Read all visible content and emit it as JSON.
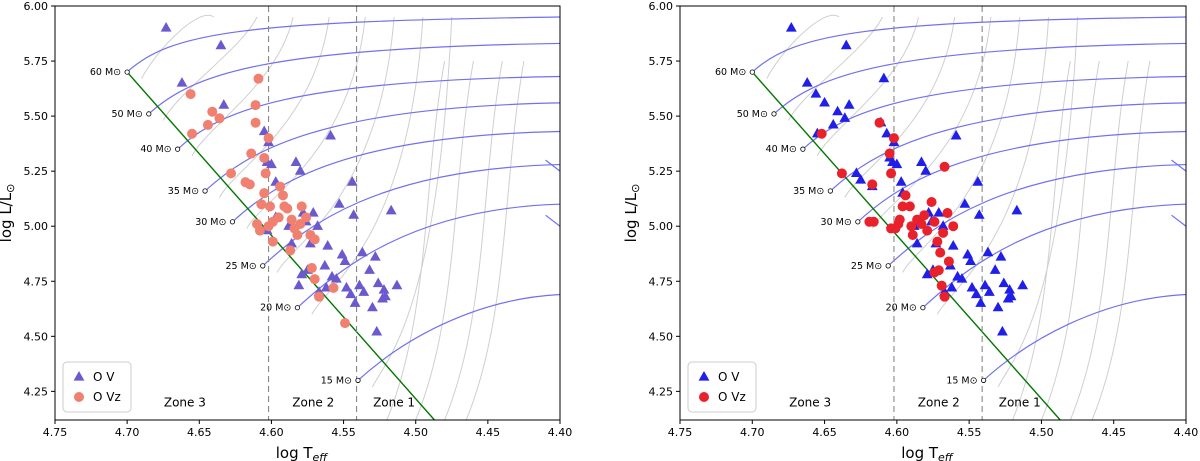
{
  "chart_data": [
    {
      "type": "scatter",
      "panel": "left",
      "xlabel": "log T",
      "xlabel_sub": "eff",
      "ylabel": "log L/L",
      "ylabel_sym": "⊙",
      "xlim": [
        4.75,
        4.4
      ],
      "ylim": [
        4.12,
        6.0
      ],
      "xticks": [
        "4.75",
        "4.70",
        "4.65",
        "4.60",
        "4.55",
        "4.50",
        "4.45",
        "4.40"
      ],
      "yticks": [
        "4.25",
        "4.50",
        "4.75",
        "5.00",
        "5.25",
        "5.50",
        "5.75",
        "6.00"
      ],
      "zone_lines": [
        4.602,
        4.541
      ],
      "zones": [
        {
          "label": "Zone 3",
          "x": 4.66,
          "y": 4.2
        },
        {
          "label": "Zone 2",
          "x": 4.571,
          "y": 4.2
        },
        {
          "label": "Zone 1",
          "x": 4.515,
          "y": 4.2
        }
      ],
      "series": [
        {
          "name": "O V",
          "marker": "triangle",
          "color": "#6a5acd",
          "points": [
            [
              4.673,
              5.9
            ],
            [
              4.662,
              5.65
            ],
            [
              4.635,
              5.82
            ],
            [
              4.633,
              5.55
            ],
            [
              4.605,
              5.43
            ],
            [
              4.602,
              5.38
            ],
            [
              4.603,
              5.29
            ],
            [
              4.6,
              5.28
            ],
            [
              4.597,
              5.2
            ],
            [
              4.588,
              5.0
            ],
            [
              4.583,
              5.29
            ],
            [
              4.58,
              5.25
            ],
            [
              4.578,
              5.06
            ],
            [
              4.576,
              5.02
            ],
            [
              4.573,
              4.92
            ],
            [
              4.571,
              5.06
            ],
            [
              4.568,
              5.0
            ],
            [
              4.563,
              4.82
            ],
            [
              4.559,
              5.41
            ],
            [
              4.553,
              5.1
            ],
            [
              4.544,
              5.2
            ],
            [
              4.539,
              4.73
            ],
            [
              4.532,
              4.8
            ],
            [
              4.526,
              4.74
            ],
            [
              4.521,
              4.68
            ],
            [
              4.551,
              4.87
            ],
            [
              4.549,
              4.84
            ],
            [
              4.558,
              4.77
            ],
            [
              4.562,
              4.72
            ],
            [
              4.567,
              4.7
            ],
            [
              4.575,
              4.8
            ],
            [
              4.579,
              4.78
            ],
            [
              4.581,
              4.73
            ],
            [
              4.597,
              5.04
            ],
            [
              4.603,
              4.98
            ],
            [
              4.545,
              4.69
            ],
            [
              4.542,
              4.65
            ],
            [
              4.548,
              4.72
            ],
            [
              4.537,
              4.88
            ],
            [
              4.528,
              4.86
            ],
            [
              4.522,
              4.71
            ],
            [
              4.523,
              4.67
            ],
            [
              4.513,
              4.73
            ],
            [
              4.536,
              4.7
            ],
            [
              4.53,
              4.63
            ],
            [
              4.527,
              4.52
            ],
            [
              4.543,
              5.05
            ],
            [
              4.517,
              5.07
            ],
            [
              4.555,
              4.76
            ],
            [
              4.561,
              4.91
            ],
            [
              4.586,
              4.92
            ]
          ]
        },
        {
          "name": "O Vz",
          "marker": "circle",
          "color": "#f08070",
          "points": [
            [
              4.656,
              5.6
            ],
            [
              4.655,
              5.42
            ],
            [
              4.644,
              5.46
            ],
            [
              4.641,
              5.52
            ],
            [
              4.636,
              5.49
            ],
            [
              4.628,
              5.24
            ],
            [
              4.618,
              5.2
            ],
            [
              4.615,
              5.19
            ],
            [
              4.614,
              5.33
            ],
            [
              4.611,
              5.47
            ],
            [
              4.611,
              5.55
            ],
            [
              4.609,
              5.67
            ],
            [
              4.605,
              5.31
            ],
            [
              4.604,
              5.24
            ],
            [
              4.602,
              5.4
            ],
            [
              4.601,
              5.09
            ],
            [
              4.602,
              5.0
            ],
            [
              4.599,
              4.93
            ],
            [
              4.594,
              5.18
            ],
            [
              4.592,
              5.14
            ],
            [
              4.591,
              5.09
            ],
            [
              4.589,
              5.08
            ],
            [
              4.586,
              5.03
            ],
            [
              4.584,
              4.99
            ],
            [
              4.582,
              4.96
            ],
            [
              4.579,
              5.09
            ],
            [
              4.58,
              5.01
            ],
            [
              4.576,
              5.04
            ],
            [
              4.573,
              4.96
            ],
            [
              4.57,
              4.94
            ],
            [
              4.572,
              4.81
            ],
            [
              4.57,
              4.76
            ],
            [
              4.567,
              4.68
            ],
            [
              4.557,
              4.72
            ],
            [
              4.549,
              4.56
            ],
            [
              4.599,
              5.02
            ],
            [
              4.595,
              5.04
            ],
            [
              4.587,
              4.89
            ],
            [
              4.607,
              5.1
            ],
            [
              4.61,
              5.01
            ],
            [
              4.608,
              4.98
            ],
            [
              4.605,
              5.15
            ]
          ]
        }
      ],
      "legend": {
        "placement": "lower-left",
        "entries": [
          "O V",
          "O Vz"
        ]
      }
    },
    {
      "type": "scatter",
      "panel": "right",
      "xlabel": "log T",
      "xlabel_sub": "eff",
      "ylabel": "log L/L",
      "ylabel_sym": "⊙",
      "xlim": [
        4.75,
        4.4
      ],
      "ylim": [
        4.12,
        6.0
      ],
      "xticks": [
        "4.75",
        "4.70",
        "4.65",
        "4.60",
        "4.55",
        "4.50",
        "4.45",
        "4.40"
      ],
      "yticks": [
        "4.25",
        "4.50",
        "4.75",
        "5.00",
        "5.25",
        "5.50",
        "5.75",
        "6.00"
      ],
      "zone_lines": [
        4.602,
        4.541
      ],
      "zones": [
        {
          "label": "Zone 3",
          "x": 4.66,
          "y": 4.2
        },
        {
          "label": "Zone 2",
          "x": 4.571,
          "y": 4.2
        },
        {
          "label": "Zone 1",
          "x": 4.515,
          "y": 4.2
        }
      ],
      "series": [
        {
          "name": "O V",
          "marker": "triangle",
          "color": "#1f1fe8",
          "points": [
            [
              4.673,
              5.9
            ],
            [
              4.662,
              5.65
            ],
            [
              4.656,
              5.6
            ],
            [
              4.655,
              5.42
            ],
            [
              4.65,
              5.56
            ],
            [
              4.644,
              5.46
            ],
            [
              4.641,
              5.52
            ],
            [
              4.636,
              5.49
            ],
            [
              4.635,
              5.82
            ],
            [
              4.633,
              5.55
            ],
            [
              4.628,
              5.24
            ],
            [
              4.625,
              5.21
            ],
            [
              4.617,
              5.18
            ],
            [
              4.611,
              5.47
            ],
            [
              4.609,
              5.67
            ],
            [
              4.607,
              5.42
            ],
            [
              4.605,
              5.31
            ],
            [
              4.603,
              5.29
            ],
            [
              4.602,
              5.38
            ],
            [
              4.6,
              5.28
            ],
            [
              4.597,
              5.2
            ],
            [
              4.596,
              5.15
            ],
            [
              4.588,
              5.0
            ],
            [
              4.583,
              5.29
            ],
            [
              4.58,
              5.25
            ],
            [
              4.578,
              5.06
            ],
            [
              4.576,
              5.02
            ],
            [
              4.573,
              4.92
            ],
            [
              4.571,
              5.06
            ],
            [
              4.568,
              5.0
            ],
            [
              4.563,
              4.82
            ],
            [
              4.559,
              5.41
            ],
            [
              4.553,
              5.1
            ],
            [
              4.551,
              4.87
            ],
            [
              4.549,
              4.84
            ],
            [
              4.548,
              4.72
            ],
            [
              4.545,
              4.69
            ],
            [
              4.544,
              5.2
            ],
            [
              4.542,
              4.65
            ],
            [
              4.539,
              4.73
            ],
            [
              4.537,
              4.88
            ],
            [
              4.536,
              4.7
            ],
            [
              4.532,
              4.8
            ],
            [
              4.53,
              4.63
            ],
            [
              4.528,
              4.86
            ],
            [
              4.527,
              4.52
            ],
            [
              4.526,
              4.74
            ],
            [
              4.523,
              4.67
            ],
            [
              4.522,
              4.71
            ],
            [
              4.521,
              4.68
            ],
            [
              4.517,
              5.07
            ],
            [
              4.513,
              4.73
            ],
            [
              4.558,
              4.77
            ],
            [
              4.562,
              4.72
            ],
            [
              4.567,
              4.7
            ],
            [
              4.555,
              4.76
            ],
            [
              4.561,
              4.91
            ],
            [
              4.575,
              4.8
            ],
            [
              4.579,
              4.78
            ],
            [
              4.586,
              4.92
            ],
            [
              4.543,
              5.05
            ]
          ]
        },
        {
          "name": "O Vz",
          "marker": "circle",
          "color": "#e8212a",
          "points": [
            [
              4.652,
              5.42
            ],
            [
              4.638,
              5.24
            ],
            [
              4.616,
              5.02
            ],
            [
              4.612,
              5.47
            ],
            [
              4.605,
              5.33
            ],
            [
              4.602,
              5.4
            ],
            [
              4.604,
              5.24
            ],
            [
              4.601,
              4.99
            ],
            [
              4.598,
              5.03
            ],
            [
              4.596,
              5.09
            ],
            [
              4.594,
              5.14
            ],
            [
              4.591,
              5.09
            ],
            [
              4.59,
              5.0
            ],
            [
              4.589,
              4.96
            ],
            [
              4.586,
              5.03
            ],
            [
              4.583,
              5.01
            ],
            [
              4.581,
              5.05
            ],
            [
              4.579,
              4.98
            ],
            [
              4.576,
              5.11
            ],
            [
              4.574,
              5.02
            ],
            [
              4.572,
              4.93
            ],
            [
              4.57,
              4.88
            ],
            [
              4.568,
              4.97
            ],
            [
              4.567,
              5.27
            ],
            [
              4.565,
              5.06
            ],
            [
              4.564,
              4.84
            ],
            [
              4.561,
              5.0
            ],
            [
              4.574,
              4.79
            ],
            [
              4.571,
              4.8
            ],
            [
              4.569,
              4.73
            ],
            [
              4.567,
              4.68
            ],
            [
              4.617,
              5.19
            ],
            [
              4.599,
              5.01
            ],
            [
              4.604,
              4.99
            ],
            [
              4.619,
              5.02
            ]
          ]
        }
      ],
      "legend": {
        "placement": "lower-left",
        "entries": [
          "O V",
          "O Vz"
        ]
      }
    }
  ],
  "mass_labels": [
    "60 M⊙",
    "50 M⊙",
    "40 M⊙",
    "35 M⊙",
    "30 M⊙",
    "25 M⊙",
    "20 M⊙",
    "15 M⊙"
  ],
  "mass_points": [
    [
      4.7,
      5.7
    ],
    [
      4.685,
      5.51
    ],
    [
      4.665,
      5.35
    ],
    [
      4.646,
      5.16
    ],
    [
      4.627,
      5.02
    ],
    [
      4.606,
      4.82
    ],
    [
      4.582,
      4.63
    ],
    [
      4.54,
      4.3
    ]
  ],
  "zams_line": {
    "color": "#007800",
    "from": [
      4.7,
      5.7
    ],
    "to": [
      4.487,
      4.12
    ]
  },
  "tracks": {
    "blue_color": "#7070f0",
    "grey_color": "#cfcfcf",
    "ends": [
      [
        4.4,
        5.95
      ],
      [
        4.4,
        5.83
      ],
      [
        4.4,
        5.68
      ],
      [
        4.4,
        5.56
      ],
      [
        4.4,
        5.43
      ],
      [
        4.4,
        5.28
      ],
      [
        4.4,
        5.1
      ],
      [
        4.4,
        4.69
      ]
    ]
  }
}
